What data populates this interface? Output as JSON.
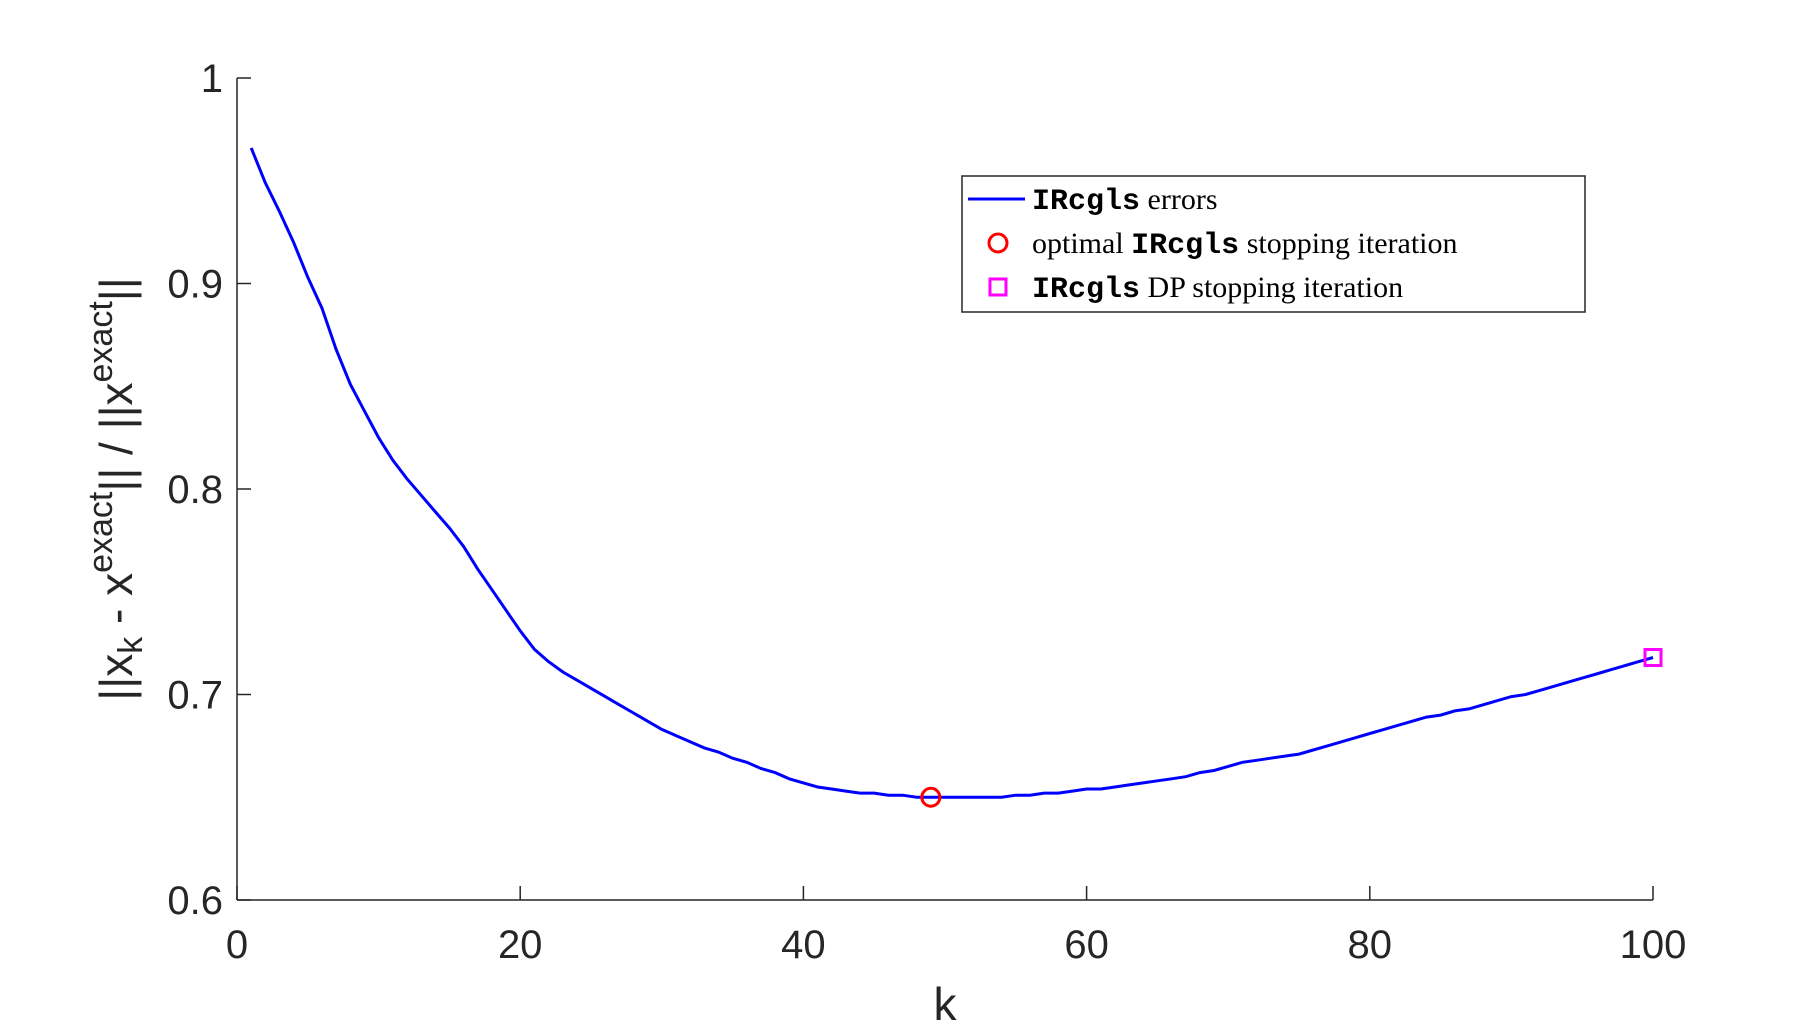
{
  "chart_data": {
    "type": "line",
    "title": "",
    "xlabel": "k",
    "ylabel": {
      "parts": [
        "||x",
        "k",
        " - x",
        "exact",
        "|| / ||x",
        "exact",
        "||"
      ]
    },
    "xlim": [
      0,
      100
    ],
    "ylim": [
      0.6,
      1
    ],
    "xticks": [
      0,
      20,
      40,
      60,
      80,
      100
    ],
    "xtick_labels": [
      "0",
      "20",
      "40",
      "60",
      "80",
      "100"
    ],
    "yticks": [
      0.6,
      0.7,
      0.8,
      0.9,
      1
    ],
    "ytick_labels": [
      "0.6",
      "0.7",
      "0.8",
      "0.9",
      "1"
    ],
    "grid": false,
    "legend_position": "top-right",
    "series": [
      {
        "name": "IRcgls errors",
        "color": "#0000ff",
        "x": [
          1,
          2,
          3,
          4,
          5,
          6,
          7,
          8,
          9,
          10,
          11,
          12,
          13,
          14,
          15,
          16,
          17,
          18,
          19,
          20,
          21,
          22,
          23,
          24,
          25,
          26,
          27,
          28,
          29,
          30,
          31,
          32,
          33,
          34,
          35,
          36,
          37,
          38,
          39,
          40,
          41,
          42,
          43,
          44,
          45,
          46,
          47,
          48,
          49,
          50,
          51,
          52,
          53,
          54,
          55,
          56,
          57,
          58,
          59,
          60,
          61,
          62,
          63,
          64,
          65,
          66,
          67,
          68,
          69,
          70,
          71,
          72,
          73,
          74,
          75,
          76,
          77,
          78,
          79,
          80,
          81,
          82,
          83,
          84,
          85,
          86,
          87,
          88,
          89,
          90,
          91,
          92,
          93,
          94,
          95,
          96,
          97,
          98,
          99,
          100
        ],
        "y": [
          0.966,
          0.949,
          0.935,
          0.92,
          0.903,
          0.888,
          0.868,
          0.851,
          0.838,
          0.825,
          0.814,
          0.805,
          0.797,
          0.789,
          0.781,
          0.772,
          0.761,
          0.751,
          0.741,
          0.731,
          0.722,
          0.716,
          0.711,
          0.707,
          0.703,
          0.699,
          0.695,
          0.691,
          0.687,
          0.683,
          0.68,
          0.677,
          0.674,
          0.672,
          0.669,
          0.667,
          0.664,
          0.662,
          0.659,
          0.657,
          0.655,
          0.654,
          0.653,
          0.652,
          0.652,
          0.651,
          0.651,
          0.65,
          0.65,
          0.65,
          0.65,
          0.65,
          0.65,
          0.65,
          0.651,
          0.651,
          0.652,
          0.652,
          0.653,
          0.654,
          0.654,
          0.655,
          0.656,
          0.657,
          0.658,
          0.659,
          0.66,
          0.662,
          0.663,
          0.665,
          0.667,
          0.668,
          0.669,
          0.67,
          0.671,
          0.673,
          0.675,
          0.677,
          0.679,
          0.681,
          0.683,
          0.685,
          0.687,
          0.689,
          0.69,
          0.692,
          0.693,
          0.695,
          0.697,
          0.699,
          0.7,
          0.702,
          0.704,
          0.706,
          0.708,
          0.71,
          0.712,
          0.714,
          0.716,
          0.718
        ]
      },
      {
        "name_parts": [
          "optimal ",
          "IRcgls",
          " stopping iteration"
        ],
        "color": "#ff0000",
        "marker": "circle",
        "x": [
          49
        ],
        "y": [
          0.65
        ]
      },
      {
        "name_parts": [
          "",
          "IRcgls",
          " DP stopping iteration"
        ],
        "color": "#ff00ff",
        "marker": "square",
        "x": [
          100
        ],
        "y": [
          0.718
        ]
      }
    ],
    "legend": {
      "entries": [
        {
          "mono": "IRcgls",
          "after": " errors"
        },
        {
          "before": "optimal ",
          "mono": "IRcgls",
          "after": " stopping iteration"
        },
        {
          "mono": "IRcgls",
          "after": " DP stopping iteration"
        }
      ]
    }
  }
}
